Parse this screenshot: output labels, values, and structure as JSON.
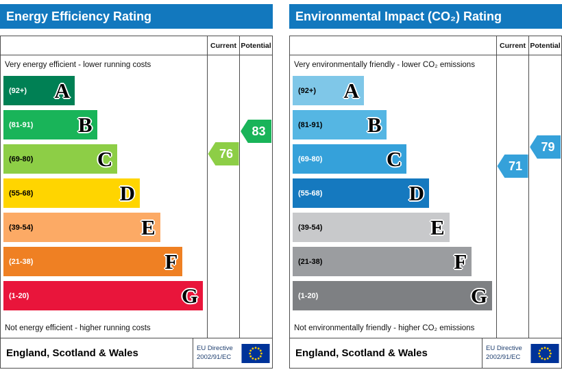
{
  "style": {
    "header_blue": "#1278be",
    "border_gray": "#4d4d4d",
    "eu_flag_blue": "#003399",
    "eu_star_yellow": "#ffcc00"
  },
  "panels": [
    {
      "id": "energy-efficiency",
      "title": "Energy Efficiency Rating",
      "col_current": "Current",
      "col_potential": "Potential",
      "top_note": "Very energy efficient - lower running costs",
      "bottom_note": "Not energy efficient - higher running costs",
      "bands": [
        {
          "letter": "A",
          "range_label": "(92+)",
          "lo": 92,
          "hi": 100,
          "color": "#008054",
          "label_color": "#ffffff",
          "width_pct": 35
        },
        {
          "letter": "B",
          "range_label": "(81-91)",
          "lo": 81,
          "hi": 91,
          "color": "#19b459",
          "label_color": "#ffffff",
          "width_pct": 46
        },
        {
          "letter": "C",
          "range_label": "(69-80)",
          "lo": 69,
          "hi": 80,
          "color": "#8dce46",
          "label_color": "#000000",
          "width_pct": 56
        },
        {
          "letter": "D",
          "range_label": "(55-68)",
          "lo": 55,
          "hi": 68,
          "color": "#ffd500",
          "label_color": "#000000",
          "width_pct": 67
        },
        {
          "letter": "E",
          "range_label": "(39-54)",
          "lo": 39,
          "hi": 54,
          "color": "#fcaa65",
          "label_color": "#000000",
          "width_pct": 77
        },
        {
          "letter": "F",
          "range_label": "(21-38)",
          "lo": 21,
          "hi": 38,
          "color": "#ef8023",
          "label_color": "#ffffff",
          "width_pct": 88
        },
        {
          "letter": "G",
          "range_label": "(1-20)",
          "lo": 1,
          "hi": 20,
          "color": "#e9153b",
          "label_color": "#ffffff",
          "width_pct": 98
        }
      ],
      "current": {
        "value": 76,
        "color": "#8dce46"
      },
      "potential": {
        "value": 83,
        "color": "#19b459"
      },
      "footer": {
        "region": "England, Scotland & Wales",
        "directive_line1": "EU Directive",
        "directive_line2": "2002/91/EC"
      }
    },
    {
      "id": "environmental-impact",
      "title": "Environmental Impact (CO₂) Rating",
      "col_current": "Current",
      "col_potential": "Potential",
      "top_note": "Very environmentally friendly - lower CO₂ emissions",
      "bottom_note": "Not environmentally friendly - higher CO₂ emissions",
      "bands": [
        {
          "letter": "A",
          "range_label": "(92+)",
          "lo": 92,
          "hi": 100,
          "color": "#7fc7e8",
          "label_color": "#000000",
          "width_pct": 35
        },
        {
          "letter": "B",
          "range_label": "(81-91)",
          "lo": 81,
          "hi": 91,
          "color": "#55b6e3",
          "label_color": "#000000",
          "width_pct": 46
        },
        {
          "letter": "C",
          "range_label": "(69-80)",
          "lo": 69,
          "hi": 80,
          "color": "#35a1da",
          "label_color": "#ffffff",
          "width_pct": 56
        },
        {
          "letter": "D",
          "range_label": "(55-68)",
          "lo": 55,
          "hi": 68,
          "color": "#1579bf",
          "label_color": "#ffffff",
          "width_pct": 67
        },
        {
          "letter": "E",
          "range_label": "(39-54)",
          "lo": 39,
          "hi": 54,
          "color": "#c8c9cb",
          "label_color": "#000000",
          "width_pct": 77
        },
        {
          "letter": "F",
          "range_label": "(21-38)",
          "lo": 21,
          "hi": 38,
          "color": "#9b9da0",
          "label_color": "#000000",
          "width_pct": 88
        },
        {
          "letter": "G",
          "range_label": "(1-20)",
          "lo": 1,
          "hi": 20,
          "color": "#7e8083",
          "label_color": "#ffffff",
          "width_pct": 98
        }
      ],
      "current": {
        "value": 71,
        "color": "#35a1da"
      },
      "potential": {
        "value": 79,
        "color": "#35a1da"
      },
      "footer": {
        "region": "England, Scotland & Wales",
        "directive_line1": "EU Directive",
        "directive_line2": "2002/91/EC"
      }
    }
  ],
  "chart_data": [
    {
      "type": "bar",
      "title": "Energy Efficiency Rating",
      "categories": [
        "A (92+)",
        "B (81-91)",
        "C (69-80)",
        "D (55-68)",
        "E (39-54)",
        "F (21-38)",
        "G (1-20)"
      ],
      "series": [
        {
          "name": "Current",
          "values": [
            76
          ],
          "band": "C"
        },
        {
          "name": "Potential",
          "values": [
            83
          ],
          "band": "B"
        }
      ],
      "xlabel": "",
      "ylabel": "",
      "annotations": [
        "Very energy efficient - lower running costs",
        "Not energy efficient - higher running costs",
        "England, Scotland & Wales",
        "EU Directive 2002/91/EC"
      ]
    },
    {
      "type": "bar",
      "title": "Environmental Impact (CO₂) Rating",
      "categories": [
        "A (92+)",
        "B (81-91)",
        "C (69-80)",
        "D (55-68)",
        "E (39-54)",
        "F (21-38)",
        "G (1-20)"
      ],
      "series": [
        {
          "name": "Current",
          "values": [
            71
          ],
          "band": "C"
        },
        {
          "name": "Potential",
          "values": [
            79
          ],
          "band": "C"
        }
      ],
      "xlabel": "",
      "ylabel": "",
      "annotations": [
        "Very environmentally friendly - lower CO₂ emissions",
        "Not environmentally friendly - higher CO₂ emissions",
        "England, Scotland & Wales",
        "EU Directive 2002/91/EC"
      ]
    }
  ]
}
